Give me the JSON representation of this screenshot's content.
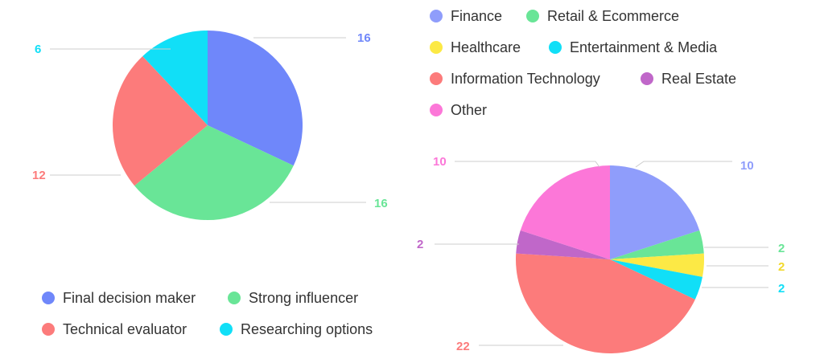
{
  "chart_data": [
    {
      "type": "pie",
      "title": "",
      "legend_position": "bottom",
      "categories": [
        "Final decision maker",
        "Strong influencer",
        "Technical evaluator",
        "Researching options"
      ],
      "values": [
        16,
        16,
        12,
        6
      ],
      "data_labels": [
        "16",
        "16",
        "12",
        "6"
      ],
      "colors": [
        "#6f87fa",
        "#69e597",
        "#fc7b7b",
        "#11dff7"
      ]
    },
    {
      "type": "pie",
      "title": "",
      "legend_position": "top",
      "categories": [
        "Finance",
        "Retail & Ecommerce",
        "Healthcare",
        "Entertainment & Media",
        "Information Technology",
        "Real Estate",
        "Other"
      ],
      "values": [
        10,
        2,
        2,
        2,
        22,
        2,
        10
      ],
      "data_labels": [
        "10",
        "2",
        "2",
        "2",
        "22",
        "2",
        "10"
      ],
      "colors": [
        "#8f9dfb",
        "#69e597",
        "#fce945",
        "#11dff7",
        "#fc7b7b",
        "#c067c9",
        "#fc77d8"
      ]
    }
  ]
}
